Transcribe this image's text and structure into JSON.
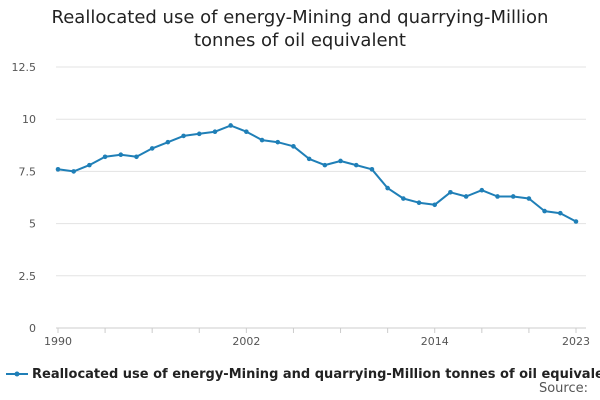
{
  "chart_data": {
    "type": "line",
    "title": "Reallocated use of energy-Mining and quarrying-Million tonnes of oil equivalent",
    "title_lines": [
      "Reallocated use of energy-Mining and quarrying-Million",
      "tonnes of oil equivalent"
    ],
    "xlabel": "",
    "ylabel": "",
    "x": [
      1990,
      1991,
      1992,
      1993,
      1994,
      1995,
      1996,
      1997,
      1998,
      1999,
      2000,
      2001,
      2002,
      2003,
      2004,
      2005,
      2006,
      2007,
      2008,
      2009,
      2010,
      2011,
      2012,
      2013,
      2014,
      2015,
      2016,
      2017,
      2018,
      2019,
      2020,
      2021,
      2022,
      2023
    ],
    "x_tick_labels": [
      "1990",
      "2002",
      "2014",
      "2023"
    ],
    "x_tick_values": [
      1990,
      2002,
      2014,
      2023
    ],
    "x_minor_ticks": [
      1990,
      1993,
      1996,
      1999,
      2002,
      2005,
      2008,
      2011,
      2014,
      2017,
      2020,
      2023
    ],
    "xlim": [
      1990,
      2023
    ],
    "ylim": [
      0,
      12.5
    ],
    "y_ticks": [
      0,
      2.5,
      5,
      7.5,
      10,
      12.5
    ],
    "y_tick_labels": [
      "0",
      "2.5",
      "5",
      "7.5",
      "10",
      "12.5"
    ],
    "grid": true,
    "series": [
      {
        "name": "Reallocated use of energy-Mining and quarrying-Million tonnes of oil equivalent",
        "color": "#1f7fb7",
        "values": [
          7.6,
          7.5,
          7.8,
          8.2,
          8.3,
          8.2,
          8.6,
          8.9,
          9.2,
          9.3,
          9.4,
          9.7,
          9.4,
          9.0,
          8.9,
          8.7,
          8.1,
          7.8,
          8.0,
          7.8,
          7.6,
          6.7,
          6.2,
          6.0,
          5.9,
          6.5,
          6.3,
          6.6,
          6.3,
          6.3,
          6.2,
          5.6,
          5.5,
          5.1
        ]
      }
    ],
    "legend_position": "bottom-left",
    "source_label": "Source:"
  }
}
